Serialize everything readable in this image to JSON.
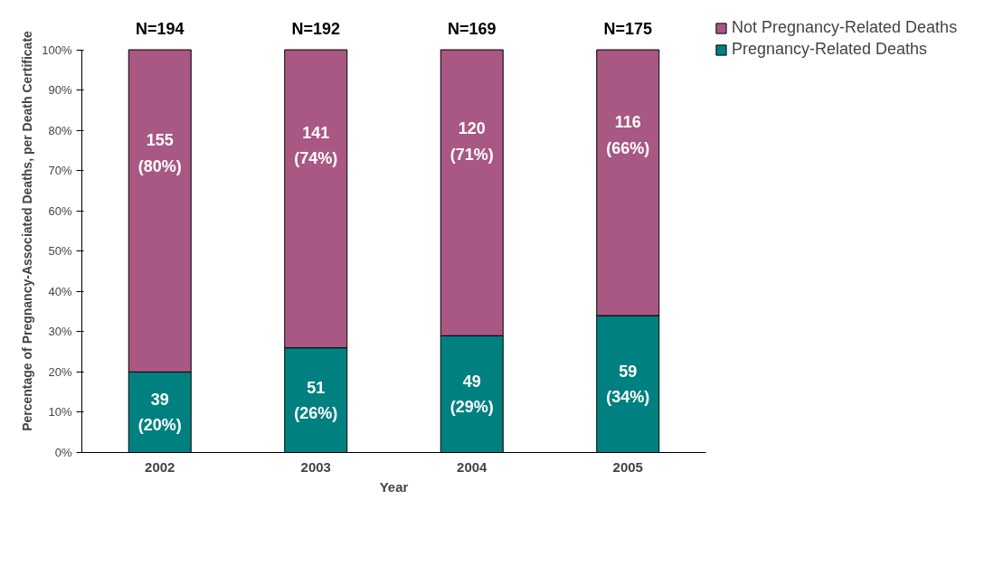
{
  "chart_data": {
    "type": "bar",
    "stacked": true,
    "xlabel": "Year",
    "ylabel": "Percentage of Pregnancy-Associated Deaths, per Death Certificate",
    "categories": [
      "2002",
      "2003",
      "2004",
      "2005"
    ],
    "series": [
      {
        "name": "Pregnancy-Related Deaths",
        "color": "#008080",
        "values": [
          20,
          26,
          29,
          34
        ],
        "value_labels": [
          "39\n(20%)",
          "51\n(26%)",
          "49\n(29%)",
          "59\n(34%)"
        ]
      },
      {
        "name": "Not Pregnancy-Related Deaths",
        "color": "#a85882",
        "values": [
          80,
          74,
          71,
          66
        ],
        "value_labels": [
          "155\n(80%)",
          "141\n(74%)",
          "120\n(71%)",
          "116\n(66%)"
        ]
      }
    ],
    "annotations": [
      {
        "text": "N=194",
        "x": "2002",
        "y": 100
      },
      {
        "text": "N=192",
        "x": "2003",
        "y": 100
      },
      {
        "text": "N=169",
        "x": "2004",
        "y": 100
      },
      {
        "text": "N=175",
        "x": "2005",
        "y": 100
      }
    ],
    "ylim": [
      0,
      100
    ],
    "yticks": [
      {
        "value": 0,
        "label": "0%"
      },
      {
        "value": 10,
        "label": "10%"
      },
      {
        "value": 20,
        "label": "20%"
      },
      {
        "value": 30,
        "label": "30%"
      },
      {
        "value": 40,
        "label": "40%"
      },
      {
        "value": 50,
        "label": "50%"
      },
      {
        "value": 60,
        "label": "60%"
      },
      {
        "value": 70,
        "label": "70%"
      },
      {
        "value": 80,
        "label": "80%"
      },
      {
        "value": 90,
        "label": "90%"
      },
      {
        "value": 100,
        "label": "100%"
      }
    ],
    "grid": false,
    "legend": "top right"
  }
}
